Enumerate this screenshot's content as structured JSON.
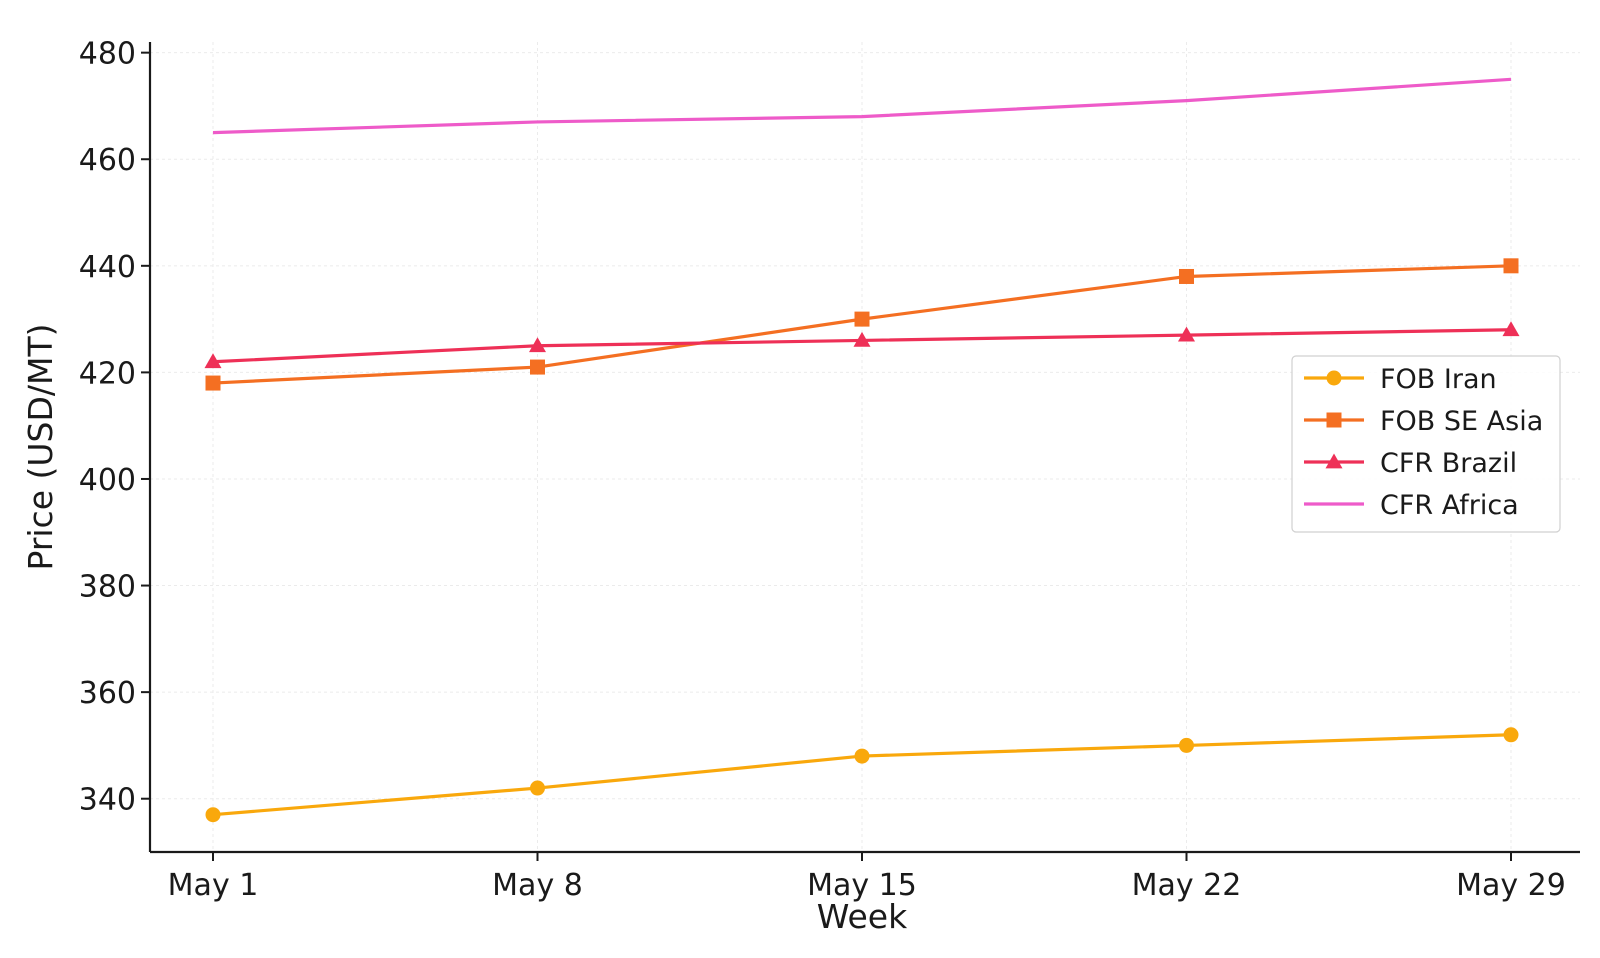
{
  "chart_data": {
    "type": "line",
    "title": "",
    "xlabel": "Week",
    "ylabel": "Price (USD/MT)",
    "categories": [
      "May 1",
      "May 8",
      "May 15",
      "May 22",
      "May 29"
    ],
    "ylim": [
      330,
      482
    ],
    "yticks": [
      340,
      360,
      380,
      400,
      420,
      440,
      460,
      480
    ],
    "grid": true,
    "legend_position": "center-right",
    "series": [
      {
        "name": "FOB Iran",
        "values": [
          337,
          342,
          348,
          350,
          352
        ],
        "color": "#f9a80c",
        "marker": "circle"
      },
      {
        "name": "FOB SE Asia",
        "values": [
          418,
          421,
          430,
          438,
          440
        ],
        "color": "#f46f22",
        "marker": "square"
      },
      {
        "name": "CFR Brazil",
        "values": [
          422,
          425,
          426,
          427,
          428
        ],
        "color": "#ee3057",
        "marker": "triangle"
      },
      {
        "name": "CFR Africa",
        "values": [
          465,
          467,
          468,
          471,
          475
        ],
        "color": "#ee5bc9",
        "marker": "none"
      }
    ]
  }
}
